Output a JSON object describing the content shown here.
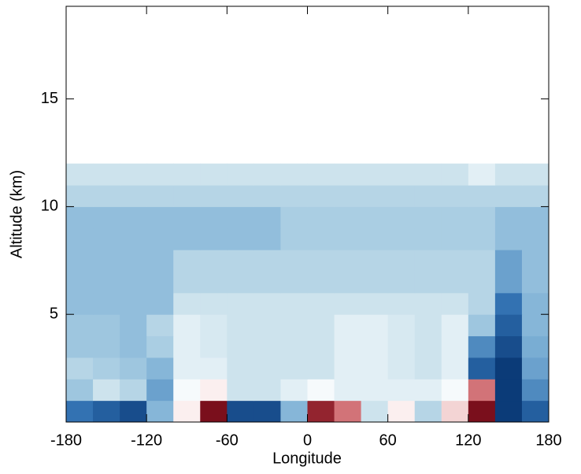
{
  "chart_data": {
    "type": "heatmap",
    "xlabel": "Longitude",
    "ylabel": "Altitude (km)",
    "xlim": [
      -180,
      180
    ],
    "ylim": [
      0,
      19.3
    ],
    "xticks": [
      -180,
      -120,
      -60,
      0,
      60,
      120,
      180
    ],
    "yticks": [
      5,
      10,
      15
    ],
    "xbins": [
      -180,
      -160,
      -140,
      -120,
      -100,
      -80,
      -60,
      -40,
      -20,
      0,
      20,
      40,
      60,
      80,
      100,
      120,
      140,
      160,
      180
    ],
    "ybins": [
      0,
      1,
      2,
      3,
      4,
      5,
      6,
      7,
      8,
      9,
      10,
      11,
      12
    ],
    "zlim": [
      -1,
      1
    ],
    "colors": [
      "#0b3b78",
      "#2f6fb0",
      "#7fb2d6",
      "#c4deea",
      "#ffffff",
      "#eab0b0",
      "#c24a52",
      "#7a0f1c"
    ],
    "z": [
      [
        -0.7,
        -0.8,
        -0.9,
        -0.4,
        0.2,
        1,
        -0.9,
        -0.9,
        -0.4,
        0.9,
        0.6,
        -0.1,
        0.2,
        -0.2,
        0.3,
        1,
        -1,
        -0.8
      ],
      [
        -0.3,
        -0.1,
        -0.2,
        -0.5,
        0.1,
        0.2,
        -0.1,
        -0.1,
        0,
        0.1,
        0,
        0,
        0,
        0,
        0.1,
        0.6,
        -1,
        -0.6
      ],
      [
        -0.2,
        -0.25,
        -0.3,
        -0.4,
        0,
        0,
        -0.1,
        -0.1,
        -0.1,
        -0.1,
        0,
        0,
        -0.05,
        -0.1,
        0,
        -0.8,
        -1,
        -0.5
      ],
      [
        -0.3,
        -0.3,
        -0.35,
        -0.25,
        0,
        -0.05,
        -0.1,
        -0.1,
        -0.1,
        -0.1,
        0,
        0,
        -0.05,
        -0.1,
        0,
        -0.6,
        -0.9,
        -0.45
      ],
      [
        -0.3,
        -0.3,
        -0.35,
        -0.2,
        0,
        -0.05,
        -0.1,
        -0.1,
        -0.1,
        -0.1,
        0,
        0,
        -0.05,
        -0.1,
        0,
        -0.3,
        -0.8,
        -0.4
      ],
      [
        -0.35,
        -0.35,
        -0.35,
        -0.35,
        -0.1,
        -0.1,
        -0.1,
        -0.1,
        -0.1,
        -0.1,
        -0.1,
        -0.1,
        -0.1,
        -0.1,
        -0.1,
        -0.2,
        -0.7,
        -0.4
      ],
      [
        -0.35,
        -0.35,
        -0.35,
        -0.35,
        -0.2,
        -0.2,
        -0.2,
        -0.2,
        -0.2,
        -0.2,
        -0.2,
        -0.2,
        -0.2,
        -0.2,
        -0.2,
        -0.2,
        -0.5,
        -0.35
      ],
      [
        -0.35,
        -0.35,
        -0.35,
        -0.35,
        -0.2,
        -0.2,
        -0.2,
        -0.2,
        -0.2,
        -0.2,
        -0.2,
        -0.2,
        -0.2,
        -0.2,
        -0.2,
        -0.2,
        -0.5,
        -0.35
      ],
      [
        -0.35,
        -0.35,
        -0.35,
        -0.35,
        -0.35,
        -0.35,
        -0.35,
        -0.35,
        -0.25,
        -0.25,
        -0.25,
        -0.25,
        -0.25,
        -0.25,
        -0.25,
        -0.25,
        -0.35,
        -0.35
      ],
      [
        -0.35,
        -0.35,
        -0.35,
        -0.35,
        -0.35,
        -0.35,
        -0.35,
        -0.35,
        -0.25,
        -0.25,
        -0.25,
        -0.25,
        -0.25,
        -0.25,
        -0.25,
        -0.25,
        -0.35,
        -0.35
      ],
      [
        -0.2,
        -0.2,
        -0.2,
        -0.2,
        -0.2,
        -0.2,
        -0.2,
        -0.2,
        -0.2,
        -0.2,
        -0.2,
        -0.2,
        -0.2,
        -0.2,
        -0.2,
        -0.2,
        -0.2,
        -0.2
      ],
      [
        -0.1,
        -0.1,
        -0.1,
        -0.1,
        -0.1,
        -0.1,
        -0.1,
        -0.1,
        -0.1,
        -0.1,
        -0.1,
        -0.1,
        -0.1,
        -0.1,
        -0.1,
        0,
        -0.1,
        -0.1
      ]
    ]
  }
}
